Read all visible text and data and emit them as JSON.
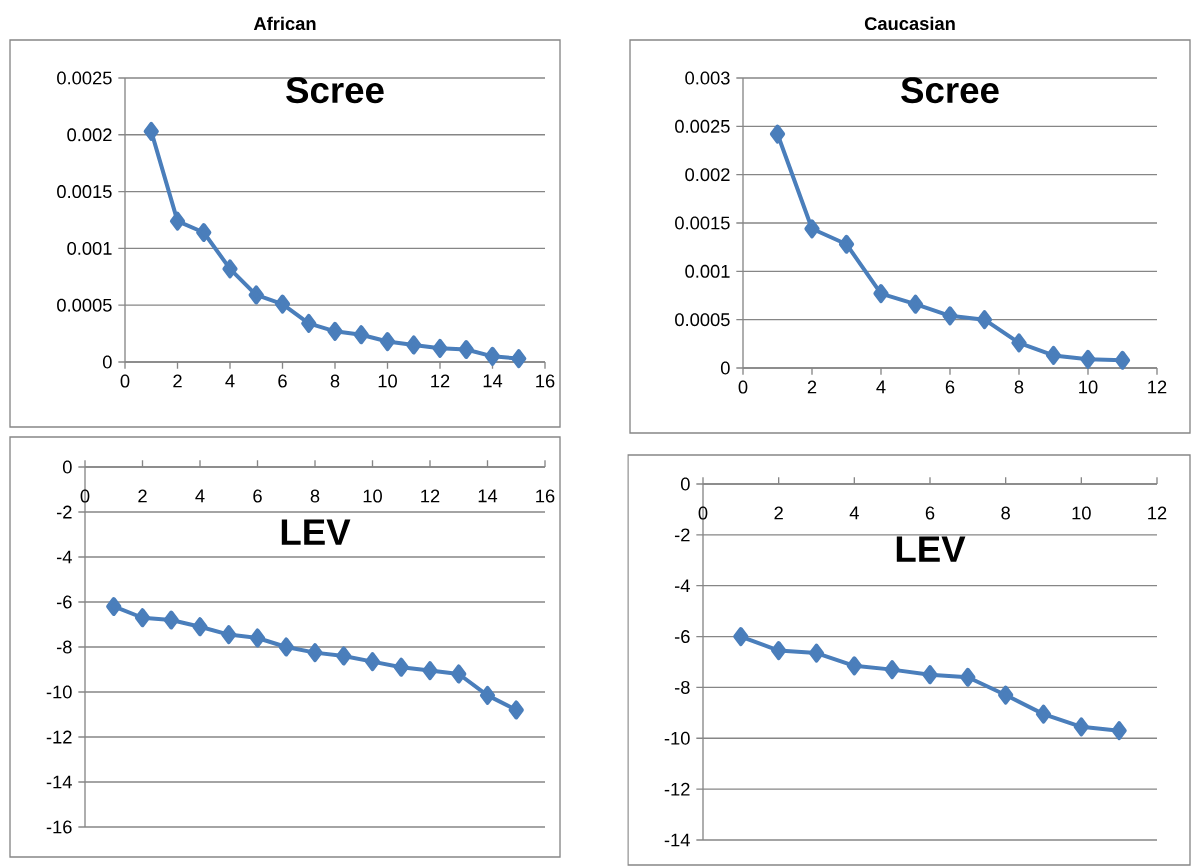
{
  "chart_data": [
    {
      "type": "line",
      "title": "Scree",
      "annotations": [
        "African"
      ],
      "x": [
        1,
        2,
        3,
        4,
        5,
        6,
        7,
        8,
        9,
        10,
        11,
        12,
        13,
        14,
        15
      ],
      "xlim": [
        0,
        16
      ],
      "xticks": [
        0,
        2,
        4,
        6,
        8,
        10,
        12,
        14,
        16
      ],
      "ylim": [
        0,
        0.0025
      ],
      "yticks": [
        0,
        0.0005,
        0.001,
        0.0015,
        0.002,
        0.0025
      ],
      "grid": "y",
      "marker": "diamond",
      "line_style": "solid",
      "series": [
        {
          "color": "#4a7ebb",
          "values": [
            0.00203,
            0.00124,
            0.00114,
            0.00082,
            0.00059,
            0.00051,
            0.00034,
            0.00027,
            0.00024,
            0.00018,
            0.00015,
            0.00012,
            0.00011,
            5e-05,
            3e-05
          ]
        }
      ]
    },
    {
      "type": "line",
      "title": "Scree",
      "annotations": [
        "Caucasian"
      ],
      "x": [
        1,
        2,
        3,
        4,
        5,
        6,
        7,
        8,
        9,
        10,
        11
      ],
      "xlim": [
        0,
        12
      ],
      "xticks": [
        0,
        2,
        4,
        6,
        8,
        10,
        12
      ],
      "ylim": [
        0,
        0.003
      ],
      "yticks": [
        0,
        0.0005,
        0.001,
        0.0015,
        0.002,
        0.0025,
        0.003
      ],
      "grid": "y",
      "marker": "diamond",
      "line_style": "solid",
      "series": [
        {
          "color": "#4a7ebb",
          "values": [
            0.00242,
            0.00144,
            0.00128,
            0.00077,
            0.00066,
            0.00054,
            0.0005,
            0.00026,
            0.00013,
            9e-05,
            8e-05
          ]
        }
      ]
    },
    {
      "type": "line",
      "title": "LEV",
      "x": [
        1,
        2,
        3,
        4,
        5,
        6,
        7,
        8,
        9,
        10,
        11,
        12,
        13,
        14,
        15
      ],
      "xlim": [
        0,
        16
      ],
      "xticks": [
        0,
        2,
        4,
        6,
        8,
        10,
        12,
        14,
        16
      ],
      "ylim": [
        -16,
        0
      ],
      "yticks": [
        -16,
        -14,
        -12,
        -10,
        -8,
        -6,
        -4,
        -2,
        0
      ],
      "grid": "y",
      "marker": "diamond",
      "line_style": "solid",
      "series": [
        {
          "color": "#4a7ebb",
          "values": [
            -6.2,
            -6.7,
            -6.8,
            -7.1,
            -7.45,
            -7.6,
            -8.0,
            -8.25,
            -8.4,
            -8.65,
            -8.9,
            -9.05,
            -9.2,
            -10.15,
            -10.8
          ]
        }
      ]
    },
    {
      "type": "line",
      "title": "LEV",
      "x": [
        1,
        2,
        3,
        4,
        5,
        6,
        7,
        8,
        9,
        10,
        11
      ],
      "xlim": [
        0,
        12
      ],
      "xticks": [
        0,
        2,
        4,
        6,
        8,
        10,
        12
      ],
      "ylim": [
        -14,
        0
      ],
      "yticks": [
        -14,
        -12,
        -10,
        -8,
        -6,
        -4,
        -2,
        0
      ],
      "grid": "y",
      "marker": "diamond",
      "line_style": "solid",
      "series": [
        {
          "color": "#4a7ebb",
          "values": [
            -6.0,
            -6.55,
            -6.65,
            -7.15,
            -7.3,
            -7.5,
            -7.6,
            -8.3,
            -9.05,
            -9.55,
            -9.7
          ]
        }
      ]
    }
  ]
}
